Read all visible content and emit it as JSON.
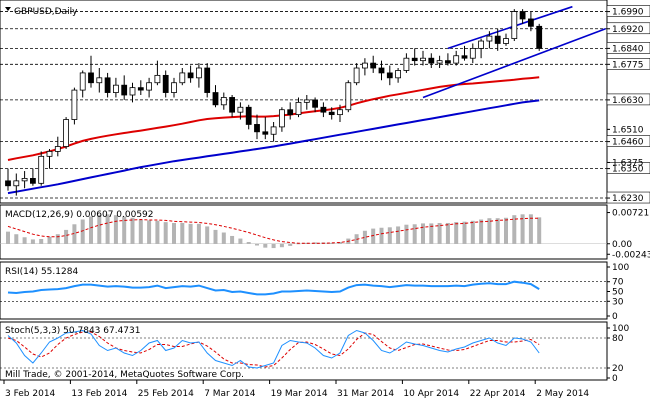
{
  "window": {
    "title": "GBPUSD,Daily",
    "copyright": "Mill Trade, © 2001-2014, MetaQuotes Software Corp."
  },
  "chart_data": [
    {
      "type": "candlestick",
      "name": "GBPUSD,Daily",
      "y_ticks": [
        1.699,
        1.692,
        1.684,
        1.6775,
        1.663,
        1.651,
        1.646,
        1.6375,
        1.635,
        1.623
      ],
      "horizontal_levels": [
        1.699,
        1.692,
        1.684,
        1.6775,
        1.663,
        1.646,
        1.635,
        1.623
      ],
      "ylim": [
        1.6222,
        1.7025
      ],
      "x_tick_labels": [
        "3 Feb 2014",
        "13 Feb 2014",
        "25 Feb 2014",
        "7 Mar 2014",
        "19 Mar 2014",
        "31 Mar 2014",
        "10 Apr 2014",
        "22 Apr 2014",
        "2 May 2014"
      ],
      "x_tick_index": [
        0,
        8,
        16,
        24,
        32,
        40,
        48,
        56,
        64
      ],
      "candles": [
        [
          1.63,
          1.635,
          1.626,
          1.628
        ],
        [
          1.628,
          1.633,
          1.624,
          1.63
        ],
        [
          1.63,
          1.634,
          1.627,
          1.631
        ],
        [
          1.631,
          1.635,
          1.628,
          1.629
        ],
        [
          1.629,
          1.642,
          1.628,
          1.64
        ],
        [
          1.64,
          1.643,
          1.635,
          1.642
        ],
        [
          1.642,
          1.648,
          1.64,
          1.644
        ],
        [
          1.644,
          1.656,
          1.643,
          1.655
        ],
        [
          1.655,
          1.668,
          1.653,
          1.667
        ],
        [
          1.667,
          1.675,
          1.664,
          1.674
        ],
        [
          1.674,
          1.681,
          1.668,
          1.67
        ],
        [
          1.67,
          1.676,
          1.666,
          1.672
        ],
        [
          1.672,
          1.674,
          1.664,
          1.666
        ],
        [
          1.666,
          1.672,
          1.664,
          1.669
        ],
        [
          1.669,
          1.673,
          1.663,
          1.665
        ],
        [
          1.665,
          1.67,
          1.662,
          1.668
        ],
        [
          1.668,
          1.671,
          1.665,
          1.667
        ],
        [
          1.667,
          1.672,
          1.664,
          1.67
        ],
        [
          1.67,
          1.679,
          1.669,
          1.673
        ],
        [
          1.673,
          1.675,
          1.664,
          1.666
        ],
        [
          1.666,
          1.672,
          1.664,
          1.67
        ],
        [
          1.67,
          1.676,
          1.669,
          1.674
        ],
        [
          1.674,
          1.677,
          1.67,
          1.672
        ],
        [
          1.672,
          1.678,
          1.668,
          1.676
        ],
        [
          1.676,
          1.678,
          1.664,
          1.666
        ],
        [
          1.666,
          1.669,
          1.66,
          1.661
        ],
        [
          1.661,
          1.666,
          1.659,
          1.664
        ],
        [
          1.664,
          1.665,
          1.656,
          1.658
        ],
        [
          1.658,
          1.662,
          1.655,
          1.66
        ],
        [
          1.66,
          1.661,
          1.651,
          1.653
        ],
        [
          1.653,
          1.657,
          1.647,
          1.65
        ],
        [
          1.65,
          1.656,
          1.647,
          1.649
        ],
        [
          1.649,
          1.654,
          1.646,
          1.652
        ],
        [
          1.652,
          1.66,
          1.65,
          1.659
        ],
        [
          1.659,
          1.662,
          1.655,
          1.657
        ],
        [
          1.657,
          1.664,
          1.656,
          1.662
        ],
        [
          1.662,
          1.665,
          1.659,
          1.663
        ],
        [
          1.663,
          1.664,
          1.658,
          1.66
        ],
        [
          1.66,
          1.662,
          1.656,
          1.658
        ],
        [
          1.658,
          1.66,
          1.655,
          1.657
        ],
        [
          1.657,
          1.661,
          1.654,
          1.659
        ],
        [
          1.659,
          1.671,
          1.658,
          1.67
        ],
        [
          1.67,
          1.678,
          1.669,
          1.676
        ],
        [
          1.676,
          1.68,
          1.673,
          1.678
        ],
        [
          1.678,
          1.681,
          1.674,
          1.676
        ],
        [
          1.676,
          1.679,
          1.671,
          1.674
        ],
        [
          1.674,
          1.677,
          1.669,
          1.672
        ],
        [
          1.672,
          1.676,
          1.67,
          1.675
        ],
        [
          1.675,
          1.682,
          1.674,
          1.68
        ],
        [
          1.68,
          1.684,
          1.677,
          1.679
        ],
        [
          1.679,
          1.683,
          1.677,
          1.68
        ],
        [
          1.68,
          1.682,
          1.676,
          1.678
        ],
        [
          1.678,
          1.681,
          1.676,
          1.679
        ],
        [
          1.679,
          1.682,
          1.677,
          1.678
        ],
        [
          1.678,
          1.683,
          1.677,
          1.681
        ],
        [
          1.681,
          1.685,
          1.679,
          1.68
        ],
        [
          1.68,
          1.686,
          1.678,
          1.684
        ],
        [
          1.684,
          1.688,
          1.68,
          1.687
        ],
        [
          1.687,
          1.691,
          1.684,
          1.689
        ],
        [
          1.689,
          1.692,
          1.683,
          1.686
        ],
        [
          1.686,
          1.69,
          1.685,
          1.688
        ],
        [
          1.688,
          1.7,
          1.687,
          1.699
        ],
        [
          1.699,
          1.7,
          1.694,
          1.696
        ],
        [
          1.696,
          1.699,
          1.691,
          1.693
        ],
        [
          1.693,
          1.694,
          1.683,
          1.684
        ]
      ],
      "ma_red": [
        1.6385,
        1.6392,
        1.6398,
        1.6404,
        1.6412,
        1.642,
        1.643,
        1.644,
        1.6452,
        1.6463,
        1.6471,
        1.6478,
        1.6484,
        1.649,
        1.6495,
        1.65,
        1.6505,
        1.651,
        1.6516,
        1.6521,
        1.6527,
        1.6533,
        1.654,
        1.6547,
        1.6552,
        1.6555,
        1.6558,
        1.656,
        1.6562,
        1.6563,
        1.6562,
        1.6562,
        1.6564,
        1.6567,
        1.657,
        1.6575,
        1.658,
        1.6584,
        1.6588,
        1.6592,
        1.6598,
        1.6606,
        1.6616,
        1.6625,
        1.6633,
        1.664,
        1.6647,
        1.6653,
        1.6659,
        1.6665,
        1.6671,
        1.6677,
        1.6683,
        1.6688,
        1.6692,
        1.6695,
        1.6697,
        1.67,
        1.6703,
        1.6706,
        1.6709,
        1.6712,
        1.6716,
        1.6719,
        1.6722
      ],
      "ma_blue": [
        1.625,
        1.6256,
        1.6262,
        1.6268,
        1.6274,
        1.628,
        1.6286,
        1.6293,
        1.63,
        1.6307,
        1.6314,
        1.6321,
        1.6328,
        1.6335,
        1.6342,
        1.6349,
        1.6356,
        1.6362,
        1.6368,
        1.6374,
        1.638,
        1.6385,
        1.639,
        1.6395,
        1.64,
        1.6405,
        1.641,
        1.6415,
        1.642,
        1.6425,
        1.643,
        1.6435,
        1.644,
        1.6446,
        1.6452,
        1.6458,
        1.6464,
        1.647,
        1.6476,
        1.6482,
        1.6488,
        1.6494,
        1.65,
        1.6506,
        1.6512,
        1.6518,
        1.6524,
        1.653,
        1.6536,
        1.6542,
        1.6548,
        1.6554,
        1.656,
        1.6566,
        1.6572,
        1.6578,
        1.6584,
        1.659,
        1.6596,
        1.6602,
        1.6608,
        1.6614,
        1.662,
        1.6624,
        1.6628
      ],
      "channel_upper": {
        "from": [
          53,
          1.684
        ],
        "to": [
          68,
          1.701
        ]
      },
      "channel_lower": {
        "from": [
          50,
          1.664
        ],
        "to": [
          72,
          1.692
        ]
      }
    },
    {
      "type": "bar",
      "name": "MACD(12,26,9)",
      "label": "MACD(12,26,9) 0.00607 0.00592",
      "y_ticks": [
        0.00721,
        0.0,
        -0.00243
      ],
      "y_tick_labels": [
        "0.00721",
        "0.00",
        "-0.00243"
      ],
      "ylim": [
        -0.0026,
        0.0078
      ],
      "histogram": [
        0.0028,
        0.0022,
        0.0015,
        0.001,
        0.0011,
        0.0016,
        0.0022,
        0.0032,
        0.0045,
        0.0056,
        0.0063,
        0.0067,
        0.0068,
        0.0066,
        0.0063,
        0.006,
        0.0056,
        0.0054,
        0.0053,
        0.005,
        0.0048,
        0.0048,
        0.0046,
        0.0046,
        0.004,
        0.0032,
        0.0026,
        0.0018,
        0.0012,
        0.0004,
        -0.0004,
        -0.0009,
        -0.001,
        -0.0008,
        -0.0005,
        -0.0001,
        0.0002,
        0.0003,
        0.0003,
        0.0002,
        0.0004,
        0.0012,
        0.0022,
        0.003,
        0.0035,
        0.0037,
        0.0038,
        0.004,
        0.0044,
        0.0045,
        0.0047,
        0.0047,
        0.0048,
        0.0048,
        0.005,
        0.0051,
        0.0053,
        0.0056,
        0.0059,
        0.0059,
        0.006,
        0.0066,
        0.0068,
        0.0068,
        0.0061
      ],
      "signal": [
        0.004,
        0.0034,
        0.0028,
        0.0022,
        0.0018,
        0.0016,
        0.0016,
        0.0019,
        0.0024,
        0.003,
        0.0037,
        0.0043,
        0.0048,
        0.0052,
        0.0054,
        0.0055,
        0.0056,
        0.0055,
        0.0055,
        0.0054,
        0.0052,
        0.0051,
        0.005,
        0.0049,
        0.0047,
        0.0044,
        0.004,
        0.0036,
        0.0031,
        0.0026,
        0.002,
        0.0014,
        0.0009,
        0.0005,
        0.0003,
        0.0001,
        0.0001,
        0.0001,
        0.0001,
        0.0002,
        0.0003,
        0.0006,
        0.001,
        0.0015,
        0.0019,
        0.0023,
        0.0026,
        0.0029,
        0.0032,
        0.0035,
        0.0038,
        0.004,
        0.0042,
        0.0044,
        0.0046,
        0.0047,
        0.0049,
        0.0051,
        0.0052,
        0.0054,
        0.0055,
        0.0057,
        0.0058,
        0.0059,
        0.0059
      ]
    },
    {
      "type": "line",
      "name": "RSI(14)",
      "label": "RSI(14) 55.1284",
      "y_ticks": [
        100,
        70,
        50,
        30,
        0
      ],
      "ylim": [
        0,
        100
      ],
      "levels": [
        70,
        30
      ],
      "values": [
        48,
        47,
        49,
        50,
        53,
        54,
        55,
        57,
        61,
        64,
        64,
        62,
        60,
        61,
        60,
        58,
        58,
        59,
        62,
        57,
        59,
        61,
        60,
        62,
        57,
        52,
        53,
        49,
        50,
        47,
        44,
        44,
        46,
        50,
        50,
        51,
        52,
        51,
        50,
        49,
        50,
        58,
        63,
        64,
        62,
        61,
        59,
        61,
        63,
        62,
        62,
        61,
        61,
        61,
        62,
        61,
        64,
        66,
        67,
        65,
        65,
        70,
        68,
        65,
        55
      ]
    },
    {
      "type": "line",
      "name": "Stoch(5,3,3)",
      "label": "Stoch(5,3,3) 50.7843 67.4731",
      "y_ticks": [
        100,
        80,
        20,
        0
      ],
      "ylim": [
        0,
        100
      ],
      "levels": [
        80,
        20
      ],
      "main": [
        85,
        70,
        45,
        30,
        50,
        72,
        80,
        90,
        92,
        95,
        88,
        65,
        55,
        60,
        50,
        45,
        55,
        70,
        75,
        55,
        60,
        75,
        70,
        72,
        50,
        35,
        30,
        25,
        35,
        22,
        20,
        25,
        30,
        65,
        75,
        72,
        70,
        60,
        45,
        40,
        50,
        85,
        95,
        90,
        75,
        55,
        50,
        60,
        72,
        68,
        65,
        60,
        55,
        52,
        58,
        62,
        70,
        75,
        80,
        70,
        65,
        80,
        78,
        72,
        50
      ],
      "signal": [
        80,
        75,
        62,
        48,
        42,
        50,
        67,
        80,
        87,
        92,
        92,
        83,
        70,
        60,
        55,
        52,
        50,
        57,
        67,
        67,
        63,
        63,
        68,
        72,
        64,
        52,
        38,
        30,
        30,
        27,
        26,
        22,
        25,
        40,
        57,
        71,
        72,
        67,
        58,
        48,
        45,
        58,
        77,
        90,
        87,
        73,
        60,
        55,
        61,
        67,
        68,
        64,
        60,
        56,
        55,
        57,
        63,
        69,
        75,
        75,
        72,
        72,
        74,
        77,
        67
      ]
    }
  ]
}
